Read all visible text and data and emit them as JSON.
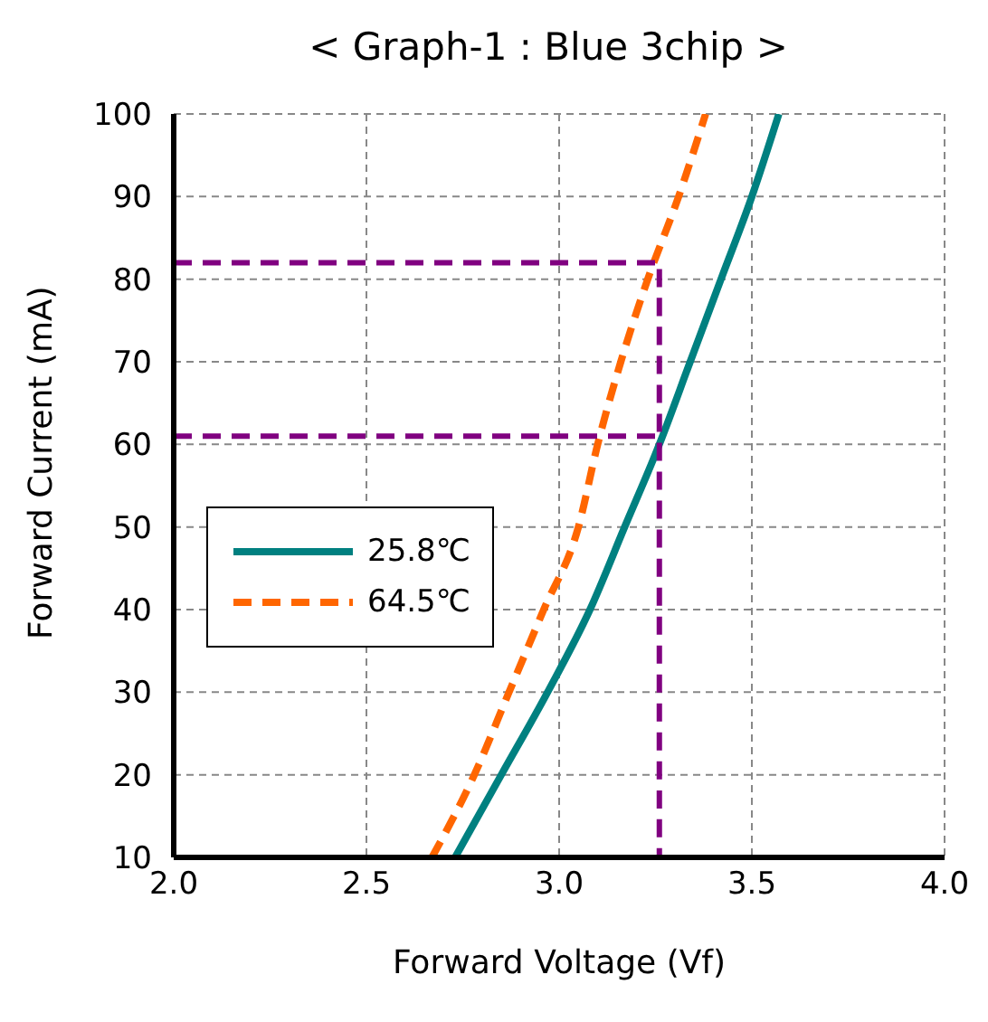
{
  "chart_data": {
    "type": "line",
    "title": "< Graph-1 : Blue 3chip >",
    "xlabel": "Forward Voltage (Vf)",
    "ylabel": "Forward Current (mA)",
    "xlim": [
      2.0,
      4.0
    ],
    "xticks": [
      {
        "value": 2.0,
        "label": "2.0"
      },
      {
        "value": 2.5,
        "label": "2.5"
      },
      {
        "value": 3.0,
        "label": "3.0"
      },
      {
        "value": 3.5,
        "label": "3.5"
      },
      {
        "value": 4.0,
        "label": "4.0"
      }
    ],
    "ylim": [
      10,
      100
    ],
    "yticks": [
      10,
      20,
      30,
      40,
      50,
      60,
      70,
      80,
      90,
      100
    ],
    "grid": true,
    "legend": "left",
    "marker": "none",
    "series": [
      {
        "name": "25.8℃",
        "color": "#008080",
        "line_style": "solid",
        "x": [
          2.73,
          2.85,
          2.97,
          3.08,
          3.17,
          3.26,
          3.34,
          3.42,
          3.5,
          3.57
        ],
        "values": [
          10,
          20,
          30,
          40,
          50,
          60,
          70,
          80,
          90,
          100
        ]
      },
      {
        "name": "64.5℃",
        "color": "#ff6600",
        "line_style": "dashed",
        "x": [
          2.67,
          2.78,
          2.87,
          2.96,
          3.05,
          3.1,
          3.16,
          3.23,
          3.31,
          3.38
        ],
        "values": [
          10,
          20,
          30,
          40,
          50,
          60,
          70,
          80,
          90,
          100
        ]
      },
      {
        "color": "#800080",
        "line_style": "dashed",
        "x": [
          2.0,
          3.26,
          3.26
        ],
        "values": [
          82,
          82,
          10
        ]
      },
      {
        "color": "#800080",
        "line_style": "dashed",
        "x": [
          2.0,
          3.26
        ],
        "values": [
          61,
          61
        ]
      }
    ]
  }
}
